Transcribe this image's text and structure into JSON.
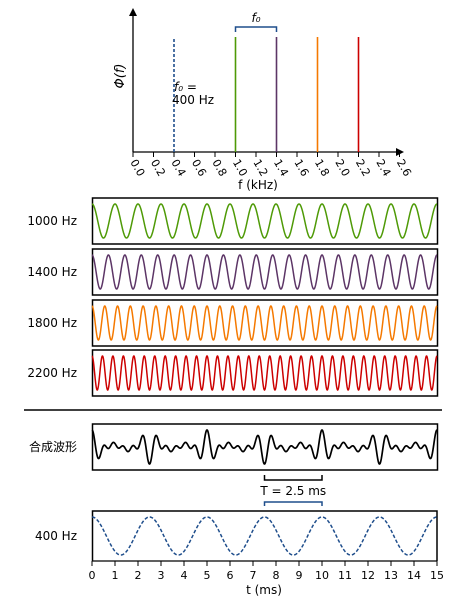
{
  "chart_data": [
    {
      "type": "line",
      "panel": "spectrum",
      "ylabel": "Φ(f)",
      "xlabel": "f (kHz)",
      "xlim": [
        0,
        2.8
      ],
      "x_ticks": [
        "0.0",
        "0.2",
        "0.4",
        "0.6",
        "0.8",
        "1.0",
        "1.2",
        "1.4",
        "1.6",
        "1.8",
        "2.0",
        "2.2",
        "2.4",
        "2.6"
      ],
      "series": [
        {
          "frequency_khz": 0.4,
          "color": "#1f4e8c",
          "linestyle": "dashed"
        },
        {
          "frequency_khz": 1.0,
          "color": "#4e9a06",
          "linestyle": "solid"
        },
        {
          "frequency_khz": 1.4,
          "color": "#5c3566",
          "linestyle": "solid"
        },
        {
          "frequency_khz": 1.8,
          "color": "#f57900",
          "linestyle": "solid"
        },
        {
          "frequency_khz": 2.2,
          "color": "#cc0000",
          "linestyle": "solid"
        }
      ],
      "annotations": {
        "f0_bracket": {
          "label": "f₀",
          "from_khz": 1.0,
          "to_khz": 1.4
        },
        "f0_note_line1": "f₀ =",
        "f0_note_line2": "400 Hz"
      },
      "grid": false
    },
    {
      "type": "line",
      "panel": "component waveforms",
      "xlabel": "t (ms)",
      "xlim": [
        0,
        15
      ],
      "x_ticks": [
        "0",
        "1",
        "2",
        "3",
        "4",
        "5",
        "6",
        "7",
        "8",
        "9",
        "10",
        "11",
        "12",
        "13",
        "14",
        "15"
      ],
      "rows": [
        {
          "label": "1000 Hz",
          "frequency_hz": 1000,
          "color": "#4e9a06",
          "linestyle": "solid"
        },
        {
          "label": "1400 Hz",
          "frequency_hz": 1400,
          "color": "#5c3566",
          "linestyle": "solid"
        },
        {
          "label": "1800 Hz",
          "frequency_hz": 1800,
          "color": "#f57900",
          "linestyle": "solid"
        },
        {
          "label": "2200 Hz",
          "frequency_hz": 2200,
          "color": "#cc0000",
          "linestyle": "solid"
        },
        {
          "label": "合成波形",
          "sum_of_hz": [
            1000,
            1400,
            1800,
            2200
          ],
          "color": "#000000",
          "linestyle": "solid"
        },
        {
          "label": "400 Hz",
          "frequency_hz": 400,
          "color": "#1f4e8c",
          "linestyle": "dashed"
        }
      ],
      "annotations": {
        "period_label": "T = 2.5 ms",
        "period_from_ms": 7.5,
        "period_to_ms": 10
      },
      "grid": false
    }
  ]
}
